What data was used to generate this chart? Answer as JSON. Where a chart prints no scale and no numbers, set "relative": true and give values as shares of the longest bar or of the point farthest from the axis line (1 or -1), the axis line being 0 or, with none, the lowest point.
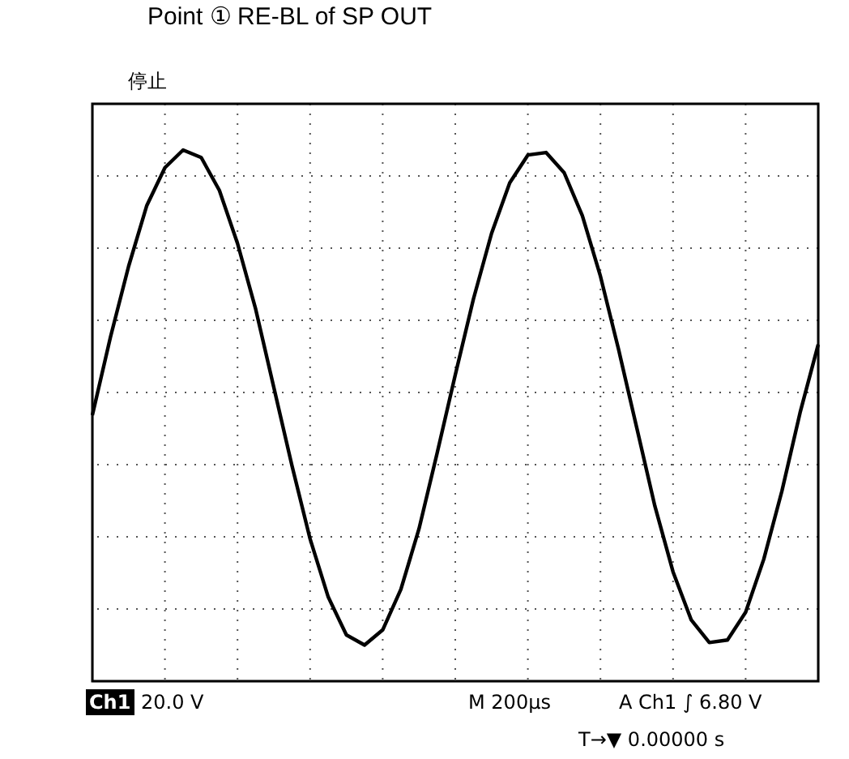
{
  "chart_data": {
    "type": "line",
    "title": "Point ① RE-BL of SP OUT",
    "relative": true,
    "grid": true,
    "marker": "none",
    "line_style": "solid",
    "categories": [
      null,
      null,
      null,
      null,
      null,
      null,
      null,
      null,
      null,
      null,
      null,
      null,
      null,
      null,
      null,
      null,
      null,
      null,
      null,
      null,
      null,
      null,
      null,
      null,
      null,
      null,
      null,
      null,
      null,
      null,
      null,
      null,
      null,
      null,
      null,
      null,
      null,
      null,
      null,
      null,
      null
    ],
    "series": [
      {
        "color": "#000000",
        "values": [
          -0.09,
          0.22,
          0.5,
          0.74,
          0.89,
          0.96,
          0.93,
          0.8,
          0.59,
          0.33,
          0.02,
          -0.29,
          -0.58,
          -0.81,
          -0.96,
          -1.0,
          -0.94,
          -0.78,
          -0.54,
          -0.24,
          0.07,
          0.37,
          0.63,
          0.83,
          0.94,
          0.95,
          0.87,
          0.7,
          0.46,
          0.17,
          -0.14,
          -0.45,
          -0.71,
          -0.9,
          -0.99,
          -0.98,
          -0.87,
          -0.66,
          -0.39,
          -0.08,
          0.19
        ]
      }
    ],
    "annotations": [
      "停止",
      "Ch1",
      "20.0 V",
      "M 200µs",
      "A  Ch1  ∫   6.80 V",
      "T→▼ 0.00000 s"
    ]
  }
}
